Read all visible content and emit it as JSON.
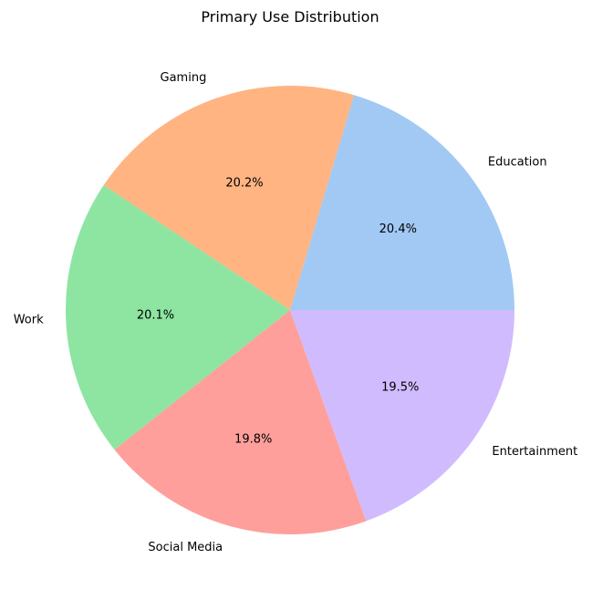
{
  "chart_data": {
    "type": "pie",
    "title": "Primary Use Distribution",
    "categories": [
      "Education",
      "Gaming",
      "Work",
      "Social Media",
      "Entertainment"
    ],
    "values": [
      20.4,
      20.2,
      20.1,
      19.8,
      19.5
    ],
    "percent_labels": [
      "20.4%",
      "20.2%",
      "20.1%",
      "19.8%",
      "19.5%"
    ],
    "colors": [
      "#a1c9f4",
      "#ffb482",
      "#8de5a1",
      "#ff9f9b",
      "#d0bbff"
    ],
    "start_angle_deg": 0,
    "direction": "counterclockwise",
    "legend": "none"
  }
}
